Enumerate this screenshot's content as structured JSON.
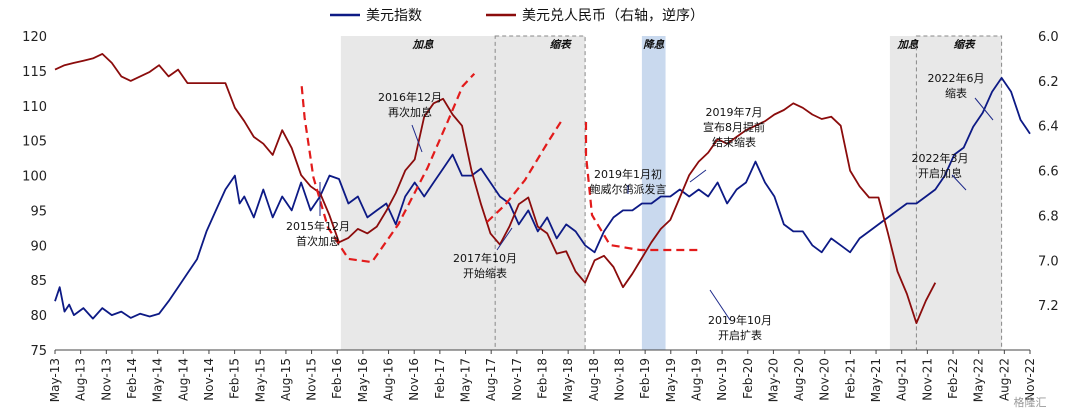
{
  "chart_data": {
    "type": "line",
    "legend": {
      "placement": "top-center",
      "items": [
        {
          "label": "美元指数",
          "color": "#0d1a85"
        },
        {
          "label": "美元兑人民币（右轴，逆序）",
          "color": "#8b0c0c"
        }
      ]
    },
    "y_left": {
      "min": 75,
      "max": 120,
      "ticks": [
        "75",
        "80",
        "85",
        "90",
        "95",
        "100",
        "105",
        "110",
        "115",
        "120"
      ]
    },
    "y_right": {
      "min": 6.0,
      "max": 7.4,
      "reversed": true,
      "ticks": [
        "6.0",
        "6.2",
        "6.4",
        "6.6",
        "6.8",
        "7.0",
        "7.2"
      ]
    },
    "x_ticks": [
      "May-13",
      "Aug-13",
      "Nov-13",
      "Feb-14",
      "May-14",
      "Aug-14",
      "Nov-14",
      "Feb-15",
      "May-15",
      "Aug-15",
      "Nov-15",
      "Feb-16",
      "May-16",
      "Aug-16",
      "Nov-16",
      "Feb-17",
      "May-17",
      "Aug-17",
      "Nov-17",
      "Feb-18",
      "May-18",
      "Aug-18",
      "Nov-18",
      "Feb-19",
      "May-19",
      "Aug-19",
      "Nov-19",
      "Feb-20",
      "May-20",
      "Aug-20",
      "Nov-20",
      "Feb-21",
      "May-21",
      "Aug-21",
      "Nov-21",
      "Feb-22",
      "May-22",
      "Aug-22",
      "Nov-22"
    ],
    "series": [
      {
        "name": "美元指数",
        "axis": "left",
        "color": "#0d1a85",
        "points": [
          [
            0,
            82
          ],
          [
            0.5,
            84
          ],
          [
            1,
            80.5
          ],
          [
            1.5,
            81.5
          ],
          [
            2,
            80
          ],
          [
            3,
            81
          ],
          [
            4,
            79.5
          ],
          [
            5,
            81
          ],
          [
            6,
            80
          ],
          [
            7,
            80.5
          ],
          [
            8,
            79.6
          ],
          [
            9,
            80.2
          ],
          [
            10,
            79.8
          ],
          [
            11,
            80.2
          ],
          [
            12,
            82
          ],
          [
            13,
            84
          ],
          [
            14,
            86
          ],
          [
            15,
            88
          ],
          [
            16,
            92
          ],
          [
            17,
            95
          ],
          [
            18,
            98
          ],
          [
            19,
            100
          ],
          [
            19.5,
            96
          ],
          [
            20,
            97
          ],
          [
            21,
            94
          ],
          [
            22,
            98
          ],
          [
            23,
            94
          ],
          [
            24,
            97
          ],
          [
            25,
            95
          ],
          [
            26,
            99
          ],
          [
            27,
            95
          ],
          [
            28,
            97
          ],
          [
            29,
            100
          ],
          [
            30,
            99.5
          ],
          [
            31,
            96
          ],
          [
            32,
            97
          ],
          [
            33,
            94
          ],
          [
            34,
            95
          ],
          [
            35,
            96
          ],
          [
            36,
            93
          ],
          [
            37,
            97
          ],
          [
            38,
            99
          ],
          [
            39,
            97
          ],
          [
            40,
            99
          ],
          [
            41,
            101
          ],
          [
            42,
            103
          ],
          [
            43,
            100
          ],
          [
            44,
            100
          ],
          [
            45,
            101
          ],
          [
            46,
            99
          ],
          [
            47,
            97
          ],
          [
            48,
            96
          ],
          [
            49,
            93
          ],
          [
            50,
            95
          ],
          [
            51,
            92
          ],
          [
            52,
            94
          ],
          [
            53,
            91
          ],
          [
            54,
            93
          ],
          [
            55,
            92
          ],
          [
            56,
            90
          ],
          [
            57,
            89
          ],
          [
            58,
            92
          ],
          [
            59,
            94
          ],
          [
            60,
            95
          ],
          [
            61,
            95
          ],
          [
            62,
            96
          ],
          [
            63,
            96
          ],
          [
            64,
            97
          ],
          [
            65,
            97
          ],
          [
            66,
            98
          ],
          [
            67,
            97
          ],
          [
            68,
            98
          ],
          [
            69,
            97
          ],
          [
            70,
            99
          ],
          [
            71,
            96
          ],
          [
            72,
            98
          ],
          [
            73,
            99
          ],
          [
            74,
            102
          ],
          [
            75,
            99
          ],
          [
            76,
            97
          ],
          [
            77,
            93
          ],
          [
            78,
            92
          ],
          [
            79,
            92
          ],
          [
            80,
            90
          ],
          [
            81,
            89
          ],
          [
            82,
            91
          ],
          [
            83,
            90
          ],
          [
            84,
            89
          ],
          [
            85,
            91
          ],
          [
            86,
            92
          ],
          [
            87,
            93
          ],
          [
            88,
            94
          ],
          [
            89,
            95
          ],
          [
            90,
            96
          ],
          [
            91,
            96
          ],
          [
            92,
            97
          ],
          [
            93,
            98
          ],
          [
            94,
            100
          ],
          [
            95,
            103
          ],
          [
            96,
            104
          ],
          [
            97,
            107
          ],
          [
            98,
            109
          ],
          [
            99,
            112
          ],
          [
            100,
            114
          ],
          [
            101,
            112
          ],
          [
            102,
            108
          ],
          [
            103,
            106
          ]
        ]
      },
      {
        "name": "美元兑人民币（右轴，逆序）",
        "axis": "right",
        "color": "#8b0c0c",
        "points": [
          [
            0,
            6.15
          ],
          [
            1,
            6.13
          ],
          [
            2,
            6.12
          ],
          [
            3,
            6.11
          ],
          [
            4,
            6.1
          ],
          [
            5,
            6.08
          ],
          [
            6,
            6.12
          ],
          [
            7,
            6.18
          ],
          [
            8,
            6.2
          ],
          [
            9,
            6.18
          ],
          [
            10,
            6.16
          ],
          [
            11,
            6.13
          ],
          [
            12,
            6.18
          ],
          [
            13,
            6.15
          ],
          [
            14,
            6.21
          ],
          [
            15,
            6.21
          ],
          [
            16,
            6.21
          ],
          [
            17,
            6.21
          ],
          [
            18,
            6.21
          ],
          [
            19,
            6.32
          ],
          [
            20,
            6.38
          ],
          [
            21,
            6.45
          ],
          [
            22,
            6.48
          ],
          [
            23,
            6.53
          ],
          [
            24,
            6.42
          ],
          [
            25,
            6.5
          ],
          [
            26,
            6.62
          ],
          [
            27,
            6.67
          ],
          [
            28,
            6.7
          ],
          [
            29,
            6.8
          ],
          [
            30,
            6.92
          ],
          [
            31,
            6.9
          ],
          [
            32,
            6.86
          ],
          [
            33,
            6.88
          ],
          [
            34,
            6.85
          ],
          [
            35,
            6.78
          ],
          [
            36,
            6.7
          ],
          [
            37,
            6.6
          ],
          [
            38,
            6.55
          ],
          [
            39,
            6.36
          ],
          [
            40,
            6.3
          ],
          [
            41,
            6.28
          ],
          [
            42,
            6.35
          ],
          [
            43,
            6.4
          ],
          [
            44,
            6.6
          ],
          [
            45,
            6.75
          ],
          [
            46,
            6.88
          ],
          [
            47,
            6.93
          ],
          [
            48,
            6.85
          ],
          [
            49,
            6.75
          ],
          [
            50,
            6.72
          ],
          [
            51,
            6.85
          ],
          [
            52,
            6.88
          ],
          [
            53,
            6.97
          ],
          [
            54,
            6.96
          ],
          [
            55,
            7.05
          ],
          [
            56,
            7.1
          ],
          [
            57,
            7.0
          ],
          [
            58,
            6.98
          ],
          [
            59,
            7.03
          ],
          [
            60,
            7.12
          ],
          [
            61,
            7.06
          ],
          [
            62,
            6.99
          ],
          [
            63,
            6.92
          ],
          [
            64,
            6.86
          ],
          [
            65,
            6.82
          ],
          [
            66,
            6.72
          ],
          [
            67,
            6.62
          ],
          [
            68,
            6.56
          ],
          [
            69,
            6.52
          ],
          [
            70,
            6.46
          ],
          [
            71,
            6.48
          ],
          [
            72,
            6.45
          ],
          [
            73,
            6.42
          ],
          [
            74,
            6.4
          ],
          [
            75,
            6.38
          ],
          [
            76,
            6.35
          ],
          [
            77,
            6.33
          ],
          [
            78,
            6.3
          ],
          [
            79,
            6.32
          ],
          [
            80,
            6.35
          ],
          [
            81,
            6.37
          ],
          [
            82,
            6.36
          ],
          [
            83,
            6.4
          ],
          [
            84,
            6.6
          ],
          [
            85,
            6.67
          ],
          [
            86,
            6.72
          ],
          [
            87,
            6.72
          ],
          [
            88,
            6.88
          ],
          [
            89,
            7.05
          ],
          [
            90,
            7.15
          ],
          [
            91,
            7.28
          ],
          [
            92,
            7.18
          ],
          [
            93,
            7.1
          ]
        ]
      }
    ],
    "dashed_trend": [
      [
        0.57,
        0.16
      ],
      [
        0.58,
        0.26
      ],
      [
        0.61,
        0.45
      ],
      [
        0.66,
        0.61
      ],
      [
        0.73,
        0.71
      ],
      [
        0.81,
        0.72
      ],
      [
        0.9,
        0.6
      ],
      [
        1.0,
        0.42
      ],
      [
        1.07,
        0.27
      ],
      [
        1.12,
        0.16
      ],
      [
        1.16,
        0.12
      ]
    ],
    "shaded_regions": [
      {
        "label": "加息",
        "color": "#e8e8e8",
        "border": "none"
      },
      {
        "label": "缩表",
        "color": "#e8e8e8",
        "border": "dashed"
      },
      {
        "label": "降息",
        "color": "#c9d9ee",
        "border": "none"
      },
      {
        "label": "加息",
        "color": "#e8e8e8",
        "border": "none"
      },
      {
        "label": "缩表",
        "color": "#e8e8e8",
        "border": "dashed"
      }
    ],
    "annotations": [
      {
        "lines": [
          "2016年12月",
          "再次加息"
        ]
      },
      {
        "lines": [
          "2015年12月",
          "首次加息"
        ]
      },
      {
        "lines": [
          "2017年10月",
          "开始缩表"
        ]
      },
      {
        "lines": [
          "2019年1月初",
          "鲍威尔鸽派发言"
        ]
      },
      {
        "lines": [
          "2019年7月",
          "宣布8月提前",
          "结束缩表"
        ]
      },
      {
        "lines": [
          "2019年10月",
          "开启扩表"
        ]
      },
      {
        "lines": [
          "2022年6月",
          "缩表"
        ]
      },
      {
        "lines": [
          "2022年3月",
          "开启加息"
        ]
      }
    ],
    "watermark": "格隆汇"
  }
}
